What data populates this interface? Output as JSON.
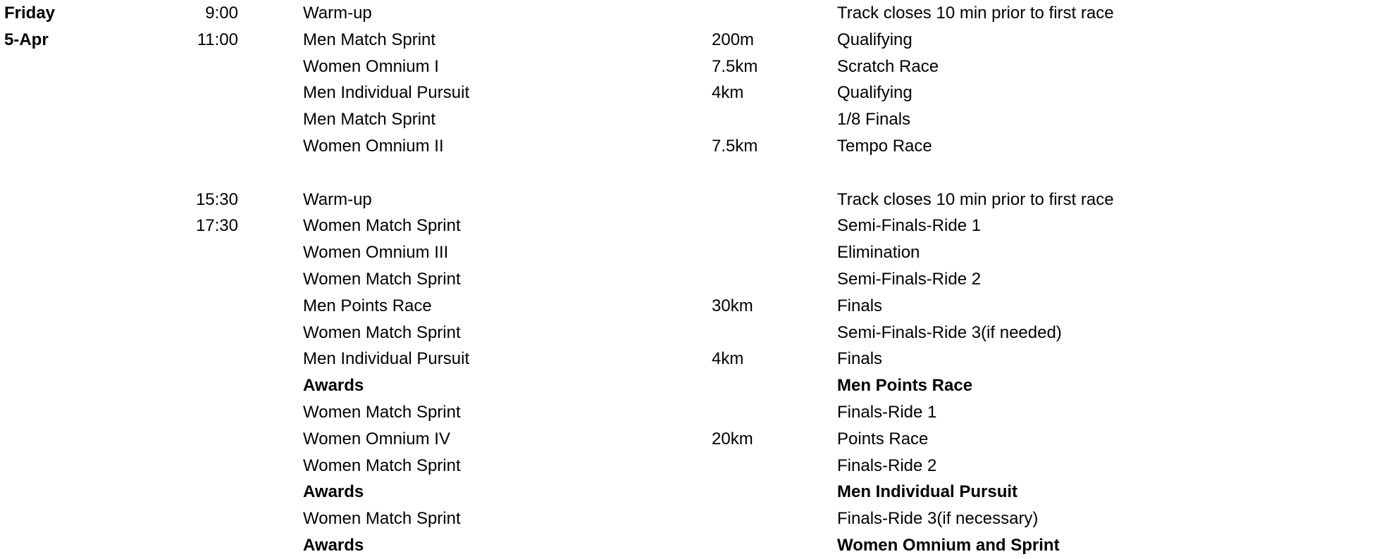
{
  "schedule": {
    "day": "Friday",
    "date": "5-Apr",
    "rows": [
      {
        "time": "9:00",
        "event": "Warm-up",
        "distance": "",
        "note": "Track closes 10 min prior to first race",
        "bold": false
      },
      {
        "time": "11:00",
        "event": "Men Match Sprint",
        "distance": "200m",
        "note": "Qualifying",
        "bold": false
      },
      {
        "time": "",
        "event": "Women Omnium I",
        "distance": "7.5km",
        "note": "Scratch Race",
        "bold": false
      },
      {
        "time": "",
        "event": "Men Individual Pursuit",
        "distance": "4km",
        "note": "Qualifying",
        "bold": false
      },
      {
        "time": "",
        "event": "Men Match Sprint",
        "distance": "",
        "note": "1/8 Finals",
        "bold": false
      },
      {
        "time": "",
        "event": "Women Omnium II",
        "distance": "7.5km",
        "note": "Tempo Race",
        "bold": false
      },
      {
        "time": "",
        "event": "",
        "distance": "",
        "note": "",
        "bold": false
      },
      {
        "time": "15:30",
        "event": "Warm-up",
        "distance": "",
        "note": "Track closes 10 min prior to first race",
        "bold": false
      },
      {
        "time": "17:30",
        "event": "Women Match Sprint",
        "distance": "",
        "note": "Semi-Finals-Ride 1",
        "bold": false
      },
      {
        "time": "",
        "event": "Women Omnium III",
        "distance": "",
        "note": "Elimination",
        "bold": false
      },
      {
        "time": "",
        "event": "Women Match Sprint",
        "distance": "",
        "note": "Semi-Finals-Ride 2",
        "bold": false
      },
      {
        "time": "",
        "event": "Men Points Race",
        "distance": "30km",
        "note": "Finals",
        "bold": false
      },
      {
        "time": "",
        "event": "Women Match Sprint",
        "distance": "",
        "note": "Semi-Finals-Ride 3(if needed)",
        "bold": false
      },
      {
        "time": "",
        "event": "Men Individual Pursuit",
        "distance": "4km",
        "note": "Finals",
        "bold": false
      },
      {
        "time": "",
        "event": "Awards",
        "distance": "",
        "note": "Men Points Race",
        "bold": true
      },
      {
        "time": "",
        "event": "Women Match Sprint",
        "distance": "",
        "note": "Finals-Ride 1",
        "bold": false
      },
      {
        "time": "",
        "event": "Women Omnium IV",
        "distance": "20km",
        "note": "Points Race",
        "bold": false
      },
      {
        "time": "",
        "event": "Women Match Sprint",
        "distance": "",
        "note": "Finals-Ride 2",
        "bold": false
      },
      {
        "time": "",
        "event": "Awards",
        "distance": "",
        "note": "Men Individual Pursuit",
        "bold": true
      },
      {
        "time": "",
        "event": "Women Match Sprint",
        "distance": "",
        "note": "Finals-Ride 3(if necessary)",
        "bold": false
      },
      {
        "time": "",
        "event": "Awards",
        "distance": "",
        "note": "Women Omnium and Sprint",
        "bold": true
      }
    ]
  }
}
